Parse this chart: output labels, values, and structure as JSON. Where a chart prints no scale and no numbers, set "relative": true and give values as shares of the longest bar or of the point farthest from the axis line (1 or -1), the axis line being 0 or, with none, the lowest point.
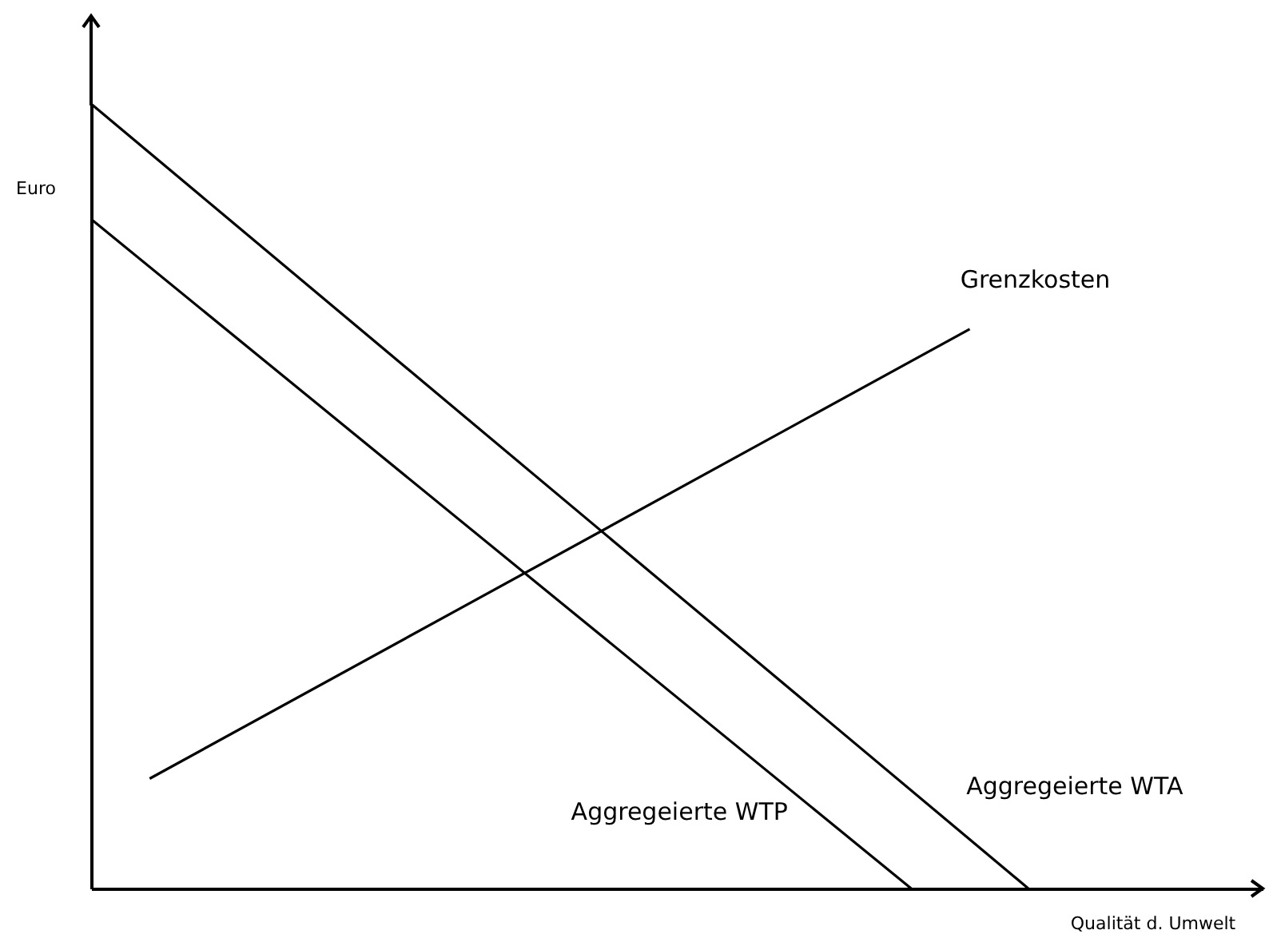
{
  "chart_data": {
    "type": "line",
    "relative": true,
    "xlabel": "Qualität d. Umwelt",
    "ylabel": "Euro",
    "marker": "none",
    "categories": [
      null,
      null,
      null,
      null,
      null,
      null,
      null,
      null,
      null,
      null,
      null,
      null,
      null,
      null,
      null,
      null,
      null,
      null,
      null,
      null,
      null
    ],
    "series": [
      {
        "name": "Grenzkosten",
        "color": "#000000",
        "values": [
          null,
          0.14,
          null,
          null,
          null,
          null,
          null,
          null,
          null,
          null,
          null,
          null,
          null,
          null,
          null,
          0.713,
          null,
          null,
          null,
          null,
          null
        ]
      },
      {
        "name": "Aggregeierte WTA",
        "color": "#000000",
        "values": [
          1,
          null,
          null,
          null,
          null,
          null,
          null,
          null,
          null,
          null,
          null,
          null,
          null,
          null,
          null,
          null,
          0,
          null,
          null,
          null,
          null
        ]
      },
      {
        "name": "Aggregeierte WTP",
        "color": "#000000",
        "values": [
          0.853,
          null,
          null,
          null,
          null,
          null,
          null,
          null,
          null,
          null,
          null,
          null,
          null,
          null,
          0,
          null,
          null,
          null,
          null,
          null,
          null
        ]
      }
    ]
  }
}
